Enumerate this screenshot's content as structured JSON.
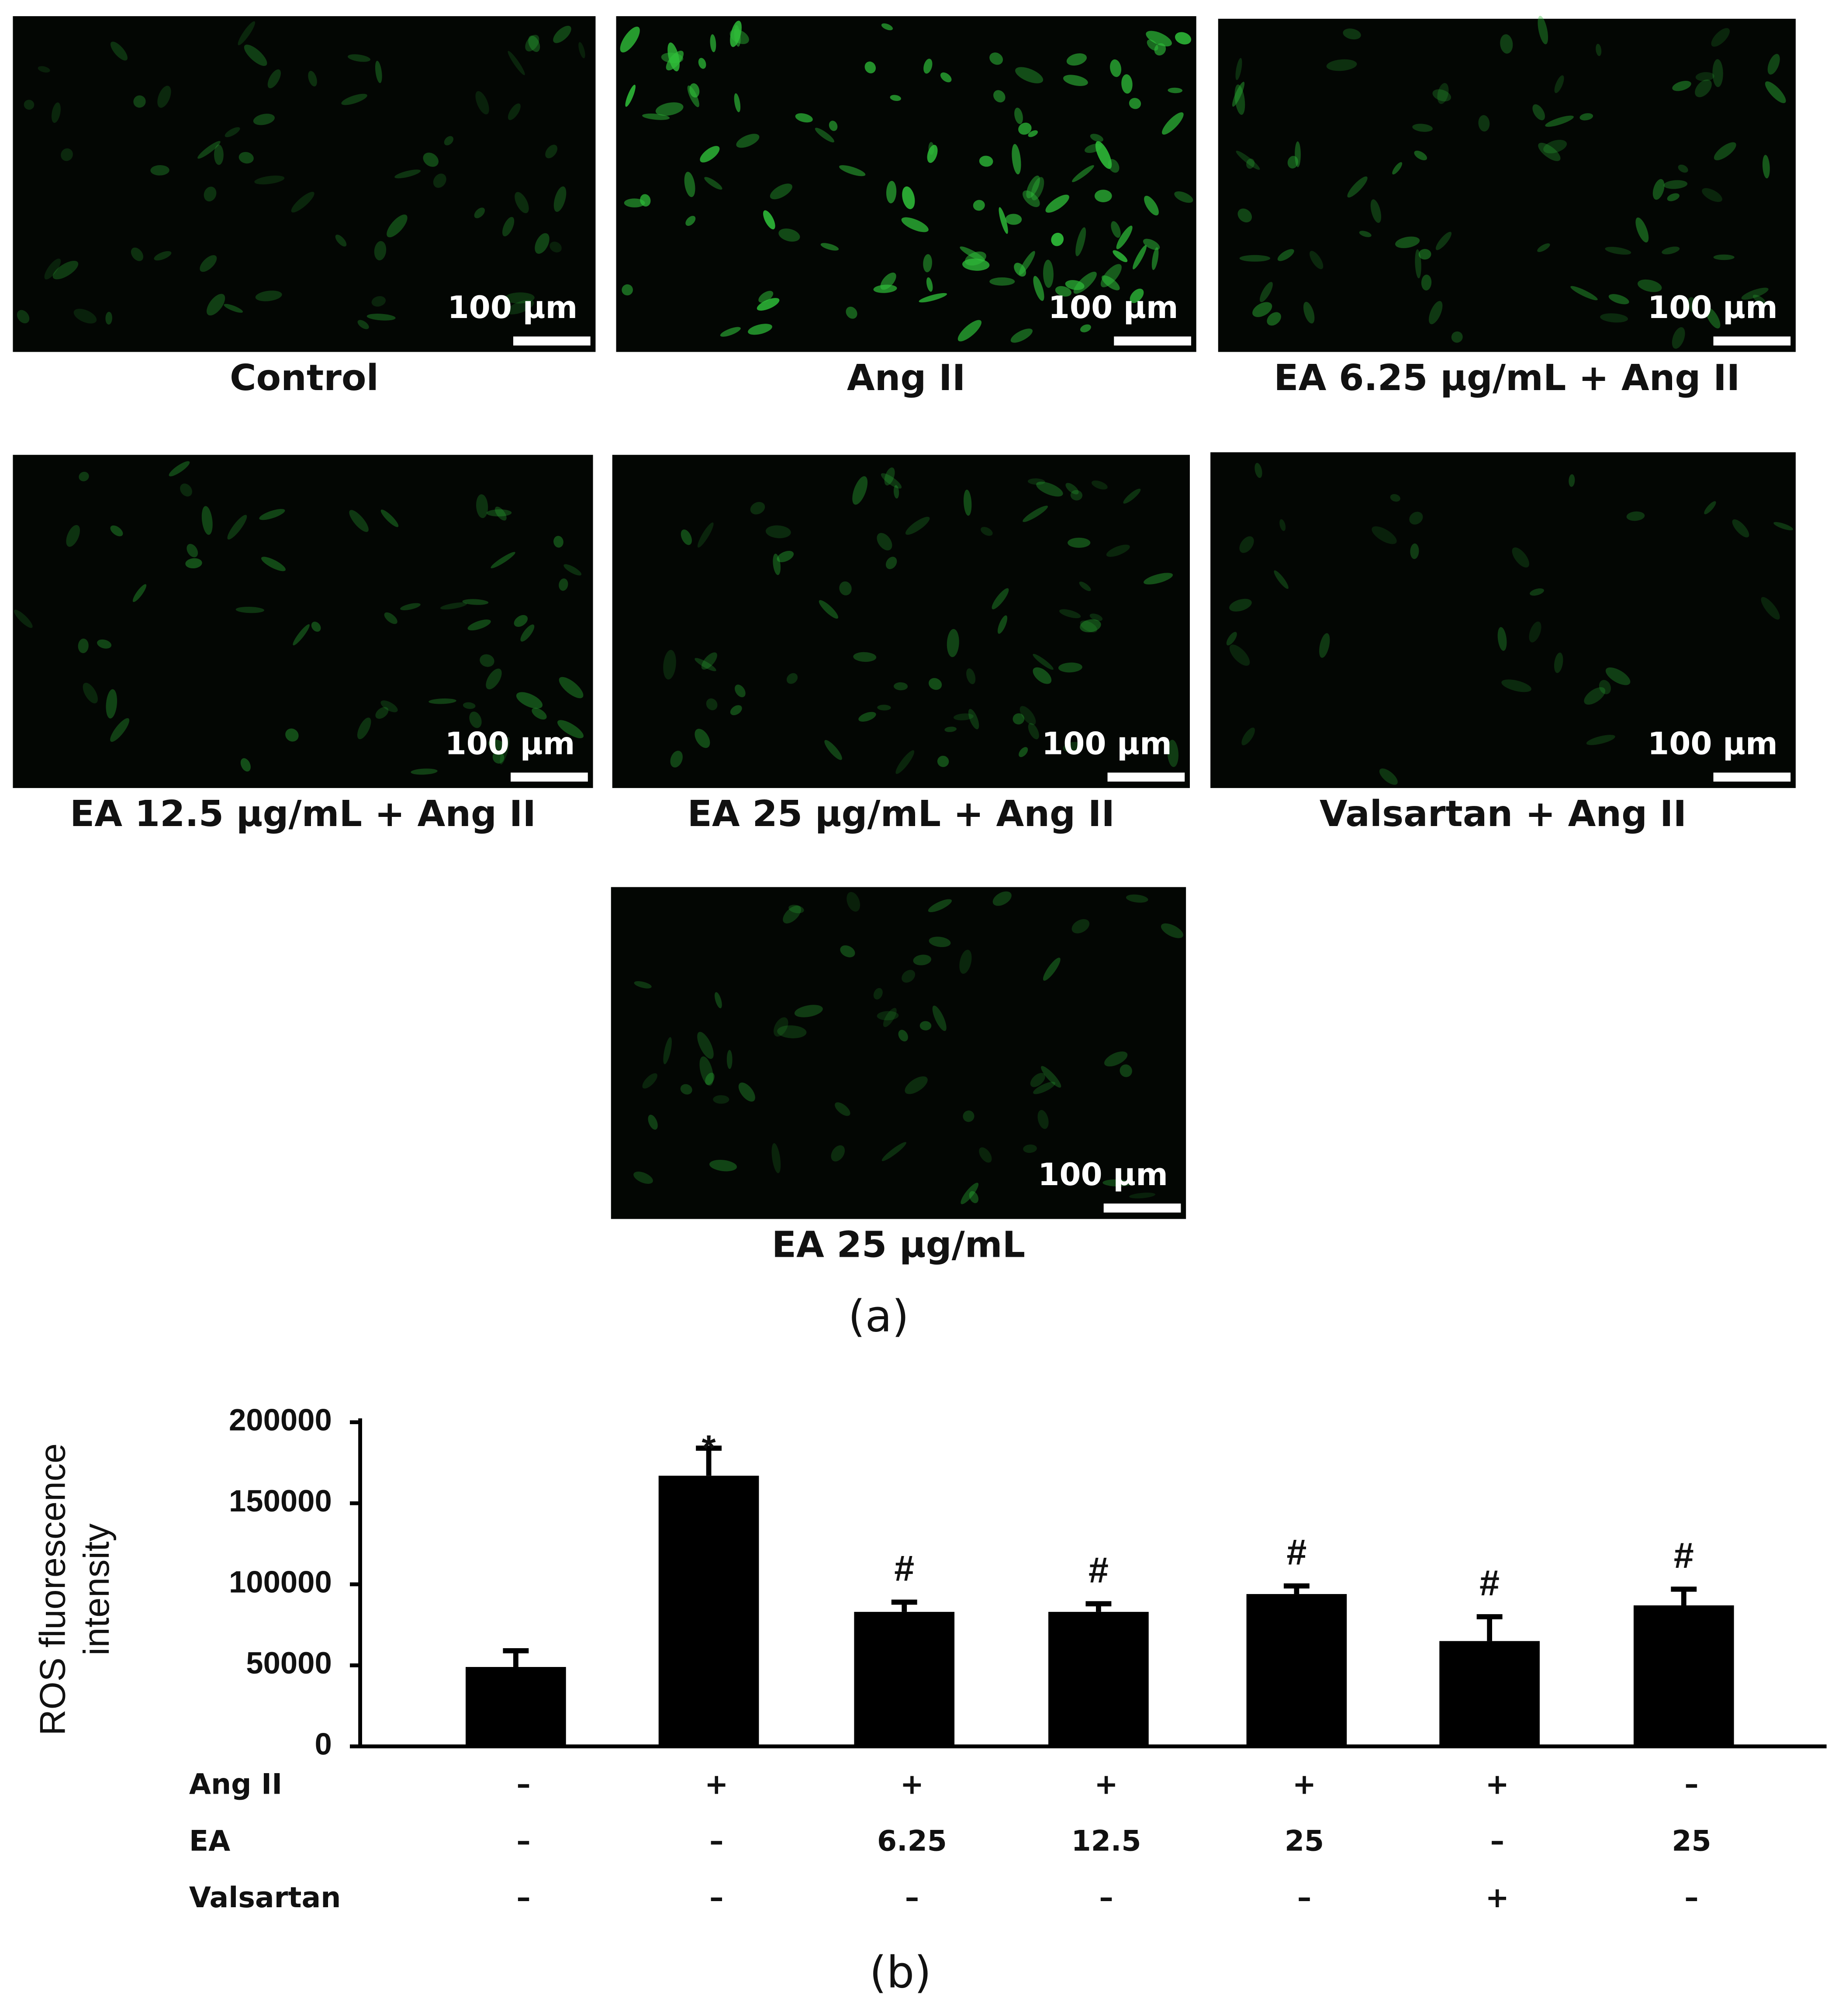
{
  "panels": [
    {
      "label": "Control",
      "scale": "100 µm"
    },
    {
      "label": "Ang II",
      "scale": "100 µm"
    },
    {
      "label": "EA 6.25 µg/mL + Ang II",
      "scale": "100 µm"
    },
    {
      "label": "EA 12.5 µg/mL + Ang II",
      "scale": "100 µm"
    },
    {
      "label": "EA 25 µg/mL + Ang II",
      "scale": "100 µm"
    },
    {
      "label": "Valsartan + Ang II",
      "scale": "100 µm"
    },
    {
      "label": "EA 25 µg/mL",
      "scale": "100 µm"
    }
  ],
  "caption_a": "(a)",
  "caption_b": "(b)",
  "chart_data": {
    "type": "bar",
    "ylabel": [
      "ROS fluorescence",
      "intensity"
    ],
    "values": [
      49000,
      167000,
      83000,
      83000,
      94000,
      65000,
      87000
    ],
    "errors": [
      10000,
      17000,
      6000,
      5000,
      5000,
      15000,
      10000
    ],
    "annotations": [
      null,
      "*",
      "#",
      "#",
      "#",
      "#",
      "#"
    ],
    "color": "#000000",
    "ylim": [
      0,
      200000
    ],
    "yticks": [
      0,
      50000,
      100000,
      150000,
      200000
    ],
    "conditions": [
      {
        "name": "Ang II",
        "values": [
          "–",
          "+",
          "+",
          "+",
          "+",
          "+",
          "–"
        ]
      },
      {
        "name": "EA",
        "values": [
          "–",
          "–",
          "6.25",
          "12.5",
          "25",
          "–",
          "25"
        ]
      },
      {
        "name": "Valsartan",
        "values": [
          "–",
          "–",
          "–",
          "–",
          "–",
          "+",
          "–"
        ]
      }
    ]
  }
}
